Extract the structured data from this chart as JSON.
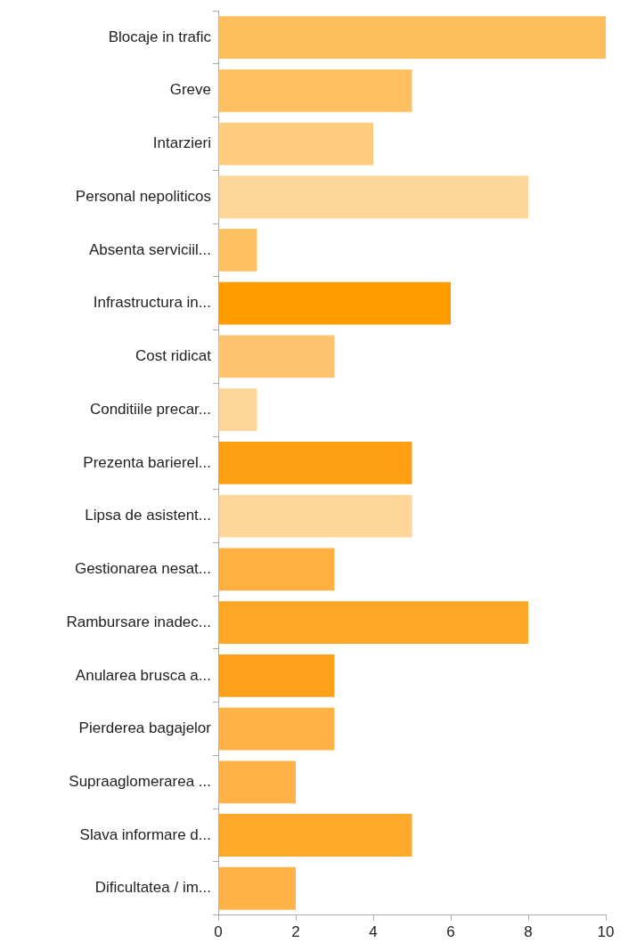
{
  "chart_data": {
    "type": "bar",
    "orientation": "horizontal",
    "categories": [
      "Blocaje in trafic",
      "Greve",
      "Intarzieri",
      "Personal nepoliticos",
      "Absenta serviciil...",
      "Infrastructura in...",
      "Cost ridicat",
      "Conditiile precar...",
      "Prezenta barierel...",
      "Lipsa de asistent...",
      "Gestionarea nesat...",
      "Rambursare inadec...",
      "Anularea brusca a...",
      "Pierderea bagajelor",
      "Supraaglomerarea ...",
      "Slava informare d...",
      "Dificultatea / im..."
    ],
    "values": [
      10,
      5,
      4,
      8,
      1,
      6,
      3,
      1,
      5,
      5,
      3,
      8,
      3,
      3,
      2,
      5,
      2
    ],
    "colors": [
      "#ffbe5c",
      "#ffc062",
      "#ffcc80",
      "#ffd699",
      "#ffc062",
      "#ff9d00",
      "#ffc470",
      "#ffd699",
      "#ffa014",
      "#ffd699",
      "#ffb03e",
      "#ffa626",
      "#ffa01a",
      "#ffb347",
      "#ffb347",
      "#ffa829",
      "#ffb347"
    ],
    "xlim": [
      0,
      10
    ],
    "xticks": [
      0,
      2,
      4,
      6,
      8,
      10
    ],
    "grid": false,
    "legend": false
  }
}
